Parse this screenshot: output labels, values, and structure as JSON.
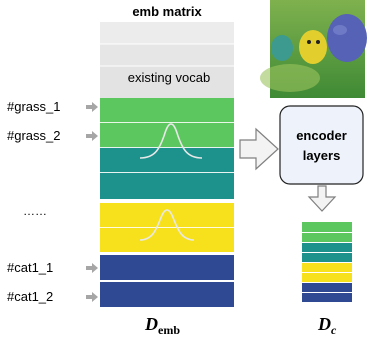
{
  "title": "emb matrix",
  "matrix": {
    "vocab_label": "existing vocab",
    "colors": {
      "vocab_light": "#ececec",
      "vocab_mid": "#e3e3e3",
      "grass": "#5cc65f",
      "teal": "#1d918b",
      "yellow": "#f7e11c",
      "navy": "#2f4a93",
      "curve": "#e6e6e6"
    }
  },
  "row_labels": [
    "#grass_1",
    "#grass_2",
    "……",
    "#cat1_1",
    "#cat1_2"
  ],
  "encoder": {
    "line1": "encoder",
    "line2": "layers"
  },
  "formula": {
    "emb_main": "D",
    "emb_sub": "emb",
    "c_main": "D",
    "c_sub": "c"
  },
  "image": {
    "description_icon": "photo-thumbnail-icon"
  },
  "icons": {
    "row_arrow": "arrow-right-icon",
    "big_arrow": "block-arrow-icon"
  }
}
